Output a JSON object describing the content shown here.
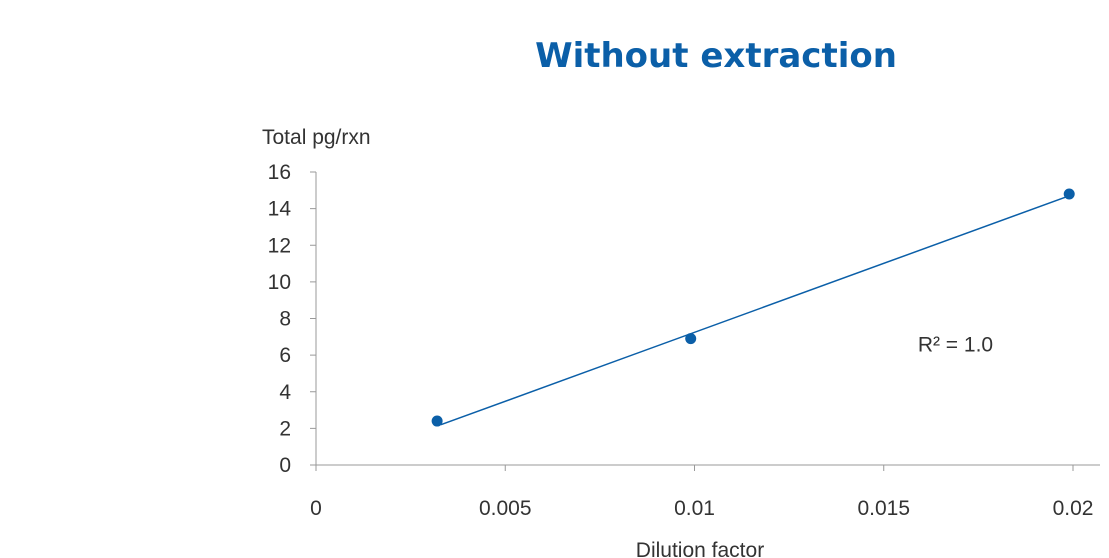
{
  "chart_data": {
    "type": "scatter",
    "title": "Without extraction",
    "xlabel": "Dilution factor",
    "ylabel": "Total pg/rxn",
    "xlim": [
      0,
      0.02
    ],
    "ylim": [
      0,
      16
    ],
    "x_ticks": [
      "0",
      "0.005",
      "0.01",
      "0.015",
      "0.02"
    ],
    "x_tick_values": [
      0,
      0.005,
      0.01,
      0.015,
      0.02
    ],
    "y_ticks": [
      "0",
      "2",
      "4",
      "6",
      "8",
      "10",
      "12",
      "14",
      "16"
    ],
    "y_tick_values": [
      0,
      2,
      4,
      6,
      8,
      10,
      12,
      14,
      16
    ],
    "series": [
      {
        "x": [
          0.0032,
          0.0099,
          0.0199
        ],
        "y": [
          2.4,
          6.9,
          14.8
        ]
      }
    ],
    "trendline": {
      "type": "linear",
      "x": [
        0.0033,
        0.0199
      ],
      "y": [
        2.2,
        14.7
      ]
    },
    "annotations": [
      {
        "text": "R² = 1.0",
        "x": 0.0159,
        "y": 6.2
      }
    ],
    "grid": false,
    "legend": "none",
    "colors": {
      "title": "#0b5fa8",
      "series": "#0b5fa8",
      "text": "#333333",
      "axis": "#999999"
    }
  }
}
